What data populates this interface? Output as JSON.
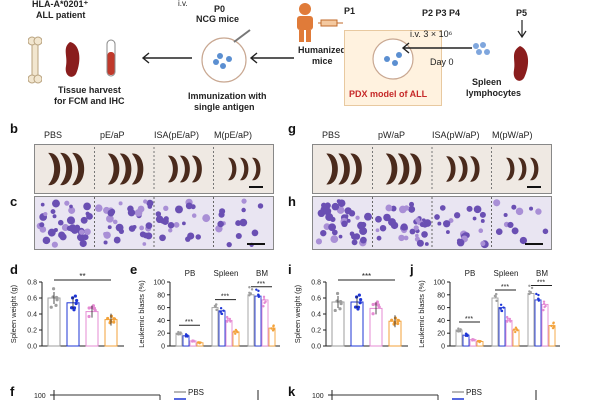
{
  "top": {
    "iv_small": "i.v.",
    "patient": [
      "HLA-A*0201⁺",
      "ALL patient"
    ],
    "p0": "P0",
    "ncg": "NCG mice",
    "p1": "P1",
    "humanized": [
      "Humanized",
      "mice"
    ],
    "p2p3p4": "P2  P3  P4",
    "p5": "P5",
    "iv_dose": "i.v. 3 × 10⁶",
    "day0": "Day 0",
    "spleen_lymph": [
      "Spleen",
      "lymphocytes"
    ],
    "tissue": [
      "Tissue harvest",
      "for FCM and IHC"
    ],
    "immun": [
      "Immunization with",
      "single antigen"
    ],
    "pdx": "PDX model of ALL"
  },
  "panels": {
    "b": "b",
    "c": "c",
    "d": "d",
    "e": "e",
    "f": "f",
    "g": "g",
    "h": "h",
    "i": "i",
    "j": "j",
    "k": "k"
  },
  "groups_left": [
    "PBS",
    "pE/aP",
    "ISA(pE/aP)",
    "M(pE/aP)"
  ],
  "groups_right": [
    "PBS",
    "pW/aP",
    "ISA(pW/aP)",
    "M(pW/aP)"
  ],
  "colors": {
    "pbs": "#9e9e9e",
    "group2": "#1e35d6",
    "group3": "#e58bd3",
    "group4": "#f3a23a",
    "pdx_text": "#c62828",
    "spleen": "#4a2a1c"
  },
  "spleen_weight_label": "Spleen weight (g)",
  "leukemic_label": "Leukemic blasts (%)",
  "tissues": [
    "PB",
    "Spleen",
    "BM"
  ],
  "sig_two": "**",
  "sig_three": "***",
  "legend_pbs": "PBS",
  "f_ytick": "100",
  "chart_data": [
    {
      "panel": "d",
      "type": "bar",
      "categories": [
        "PBS",
        "pE/aP",
        "ISA(pE/aP)",
        "M(pE/aP)"
      ],
      "values": [
        0.6,
        0.54,
        0.43,
        0.33
      ],
      "ylabel": "Spleen weight (g)",
      "ylim": [
        0,
        0.8
      ],
      "yticks": [
        "0.0",
        "0.2",
        "0.4",
        "0.6",
        "0.8"
      ]
    },
    {
      "panel": "e",
      "type": "bar",
      "categories": [
        "PB",
        "Spleen",
        "BM"
      ],
      "series": [
        {
          "values": [
            20,
            60,
            80
          ]
        },
        {
          "values": [
            16,
            55,
            78
          ]
        },
        {
          "values": [
            8,
            40,
            72
          ]
        },
        {
          "values": [
            5,
            22,
            28
          ]
        }
      ],
      "ylabel": "Leukemic blasts (%)",
      "ylim": [
        0,
        100
      ],
      "yticks": [
        "0",
        "20",
        "40",
        "60",
        "80",
        "100"
      ]
    },
    {
      "panel": "i",
      "type": "bar",
      "categories": [
        "PBS",
        "pW/aP",
        "ISA(pW/aP)",
        "M(pW/aP)"
      ],
      "values": [
        0.55,
        0.55,
        0.47,
        0.31
      ],
      "ylabel": "Spleen weight (g)",
      "ylim": [
        0,
        0.8
      ],
      "yticks": [
        "0.0",
        "0.2",
        "0.4",
        "0.6",
        "0.8"
      ]
    },
    {
      "panel": "j",
      "type": "bar",
      "categories": [
        "PB",
        "Spleen",
        "BM"
      ],
      "series": [
        {
          "values": [
            25,
            75,
            82
          ]
        },
        {
          "values": [
            17,
            60,
            72
          ]
        },
        {
          "values": [
            10,
            40,
            65
          ]
        },
        {
          "values": [
            7,
            25,
            32
          ]
        }
      ],
      "ylabel": "Leukemic blasts (%)",
      "ylim": [
        0,
        100
      ],
      "yticks": [
        "0",
        "20",
        "40",
        "60",
        "80",
        "100"
      ]
    }
  ]
}
